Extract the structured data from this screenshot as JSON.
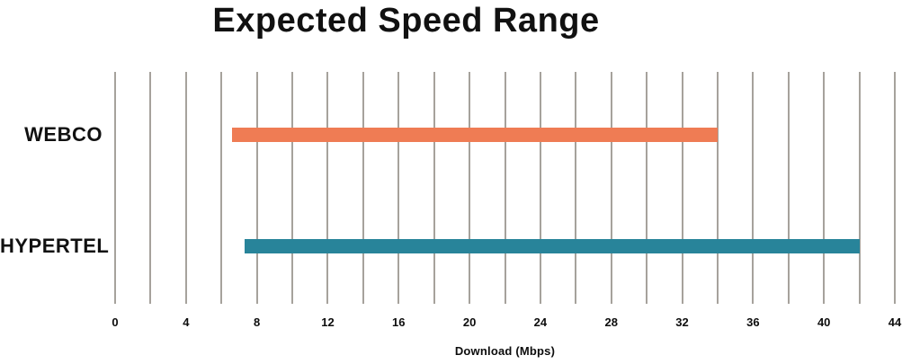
{
  "chart": {
    "title": "Expected Speed Range",
    "xlabel": "Download (Mbps)"
  },
  "chart_data": {
    "type": "bar",
    "subtype": "horizontal-range-bars",
    "title": "Expected Speed Range",
    "xlabel": "Download (Mbps)",
    "categories": [
      "WEBCO",
      "HYPERTEL"
    ],
    "series": [
      {
        "name": "WEBCO",
        "range_mbps": [
          6.6,
          34.0
        ],
        "color": "#ef7c54"
      },
      {
        "name": "HYPERTEL",
        "range_mbps": [
          7.3,
          42.0
        ],
        "color": "#28849a"
      }
    ],
    "xlim": [
      0,
      44
    ],
    "x_tick_step": 4,
    "x_tick_labels": [
      "0",
      "4",
      "8",
      "12",
      "16",
      "20",
      "24",
      "28",
      "32",
      "36",
      "40",
      "44"
    ],
    "gridline_step": 2,
    "grid": true,
    "gridline_color": "#a6a29c",
    "legend": false,
    "background_color": "#ffffff",
    "text_color": "#111111"
  }
}
